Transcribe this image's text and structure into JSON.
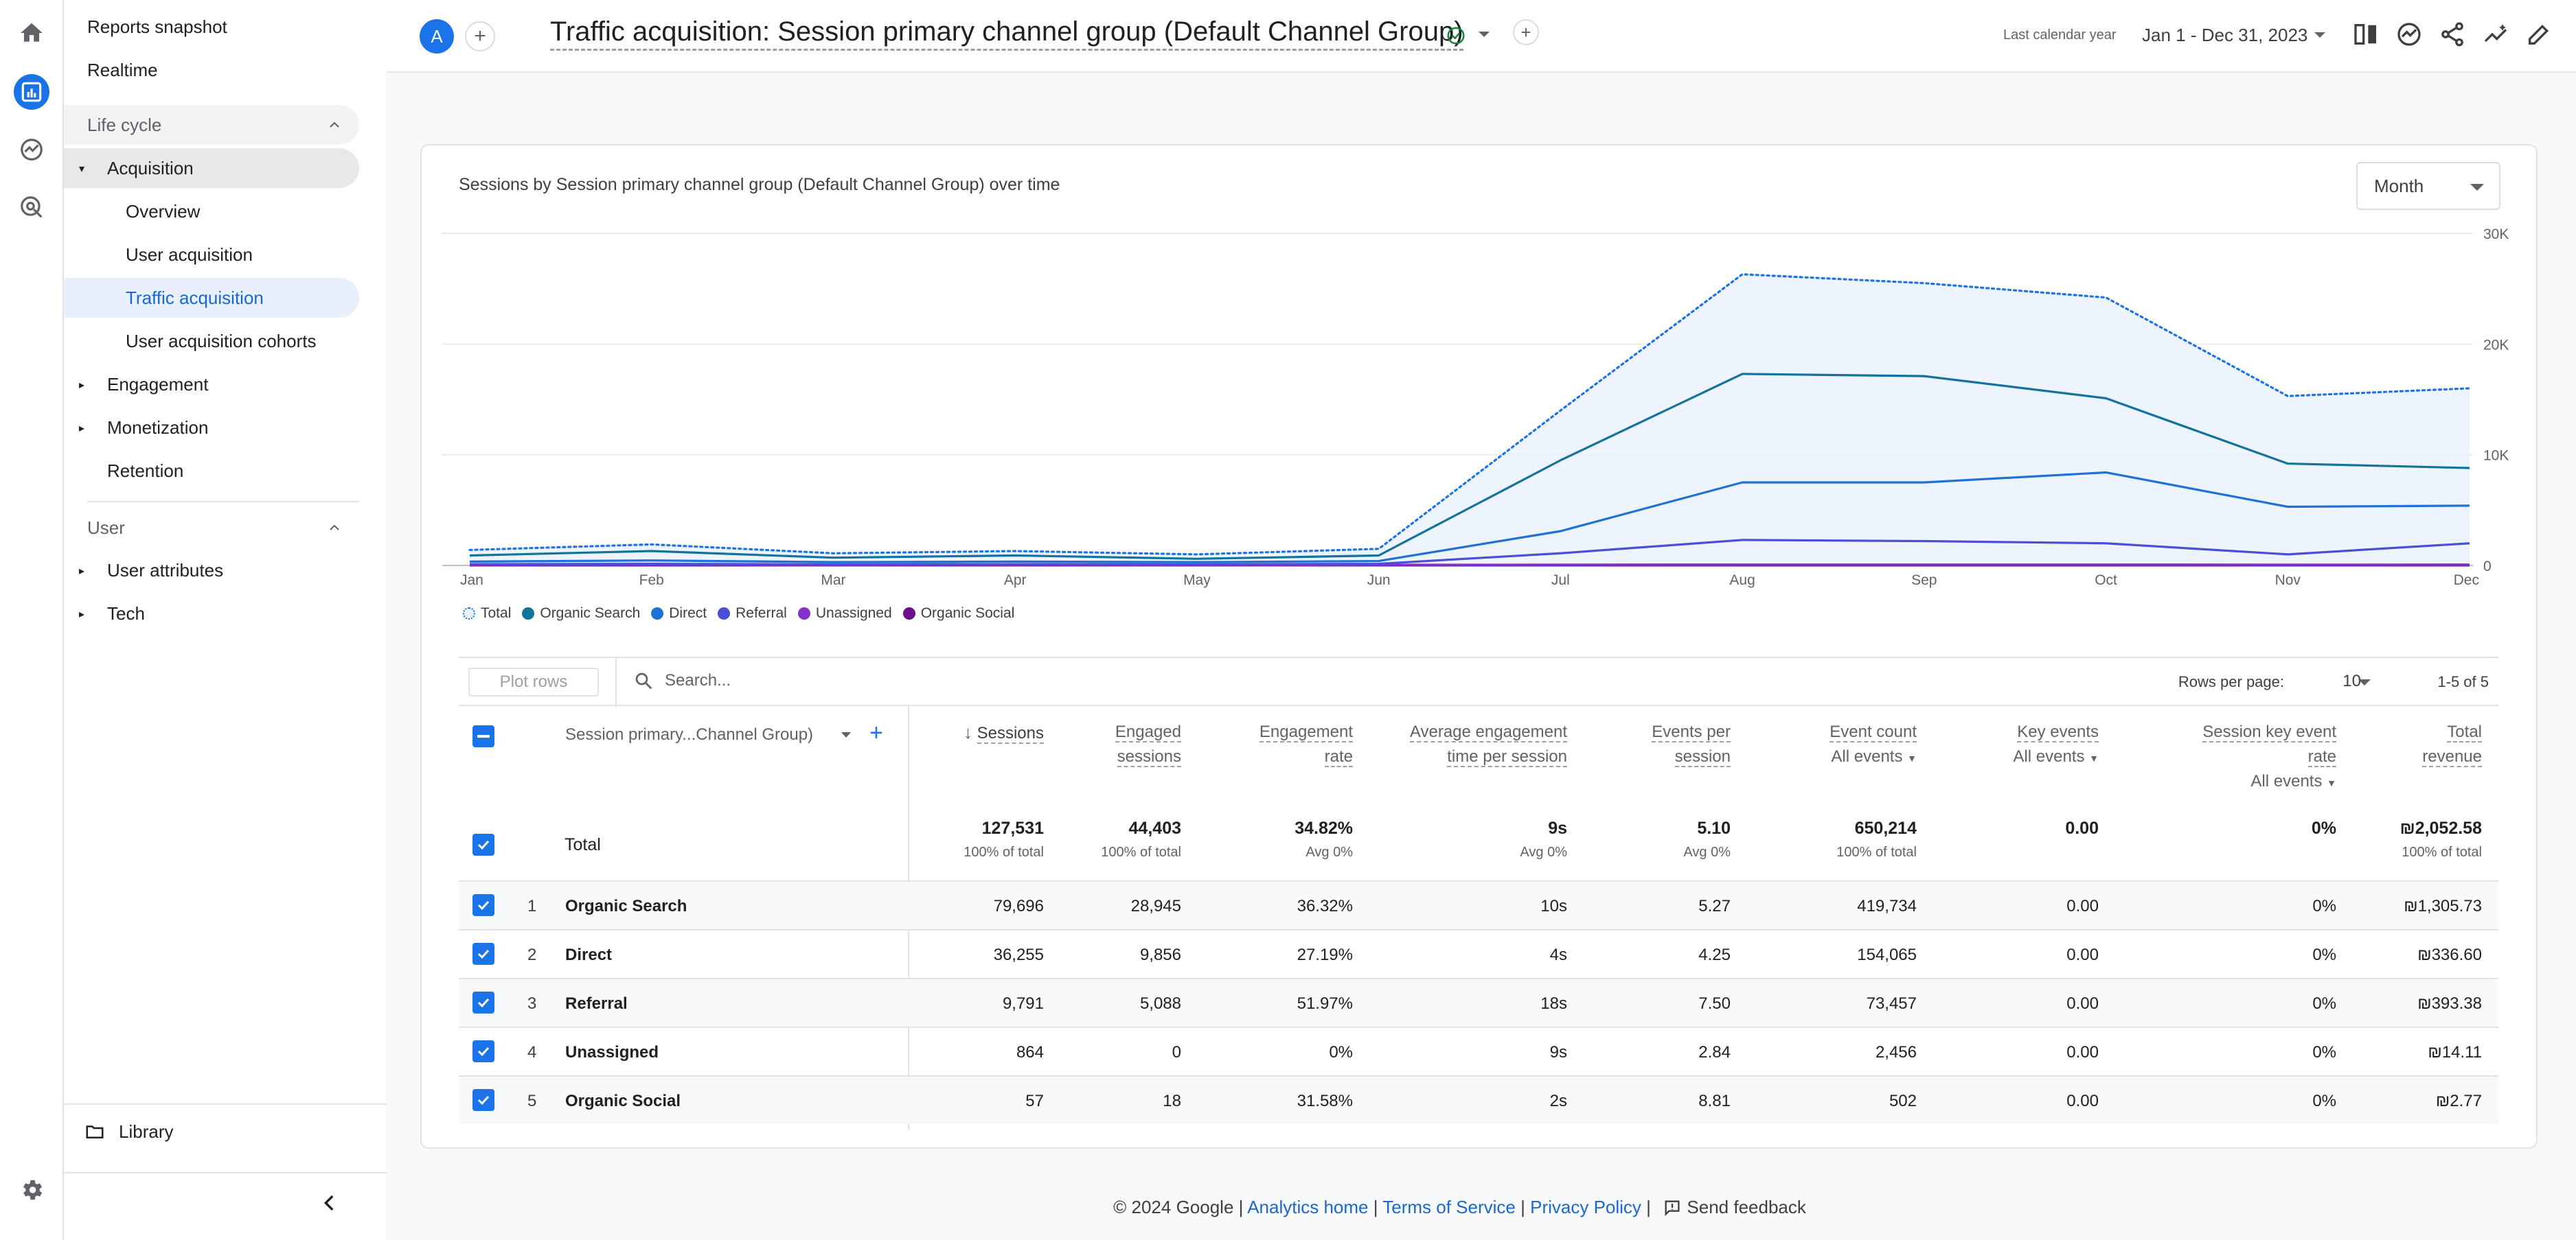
{
  "sidebar": {
    "reports_snapshot": "Reports snapshot",
    "realtime": "Realtime",
    "lifecycle_label": "Life cycle",
    "acquisition": "Acquisition",
    "overview": "Overview",
    "user_acquisition": "User acquisition",
    "traffic_acquisition": "Traffic acquisition",
    "user_acquisition_cohorts": "User acquisition cohorts",
    "engagement": "Engagement",
    "monetization": "Monetization",
    "retention": "Retention",
    "user_label": "User",
    "user_attributes": "User attributes",
    "tech": "Tech",
    "library": "Library"
  },
  "header": {
    "avatar_letter": "A",
    "title": "Traffic acquisition: Session primary channel group (Default Channel Group)",
    "date_label": "Last calendar year",
    "date_range": "Jan 1 - Dec 31, 2023"
  },
  "chart": {
    "title": "Sessions by Session primary channel group (Default Channel Group) over time",
    "granularity": "Month"
  },
  "chart_data": {
    "type": "line",
    "categories": [
      "Jan",
      "Feb",
      "Mar",
      "Apr",
      "May",
      "Jun",
      "Jul",
      "Aug",
      "Sep",
      "Oct",
      "Nov",
      "Dec"
    ],
    "y_ticks": [
      "30K",
      "20K",
      "10K",
      "0"
    ],
    "ylim": [
      0,
      30000
    ],
    "series": [
      {
        "name": "Total",
        "color": "#1a73e8",
        "style": "dotted",
        "values": [
          1400,
          1900,
          1100,
          1300,
          1000,
          1500,
          14000,
          26300,
          25500,
          24200,
          15300,
          16000
        ]
      },
      {
        "name": "Organic Search",
        "color": "#12739c",
        "values": [
          900,
          1300,
          700,
          900,
          600,
          900,
          9500,
          17300,
          17100,
          15100,
          9200,
          8800
        ]
      },
      {
        "name": "Direct",
        "color": "#1e72d6",
        "values": [
          350,
          450,
          300,
          350,
          300,
          400,
          3100,
          7500,
          7500,
          8400,
          5300,
          5400
        ]
      },
      {
        "name": "Referral",
        "color": "#4a4fd8",
        "values": [
          120,
          150,
          100,
          120,
          100,
          150,
          1100,
          2300,
          2200,
          2000,
          1000,
          2000
        ]
      },
      {
        "name": "Unassigned",
        "color": "#8430ce",
        "values": [
          60,
          70,
          50,
          60,
          50,
          60,
          70,
          80,
          80,
          80,
          70,
          80
        ]
      },
      {
        "name": "Organic Social",
        "color": "#6a0f8e",
        "values": [
          5,
          5,
          5,
          5,
          5,
          5,
          5,
          10,
          5,
          5,
          5,
          5
        ]
      }
    ]
  },
  "table": {
    "plot_rows": "Plot rows",
    "search_placeholder": "Search...",
    "rows_per_page_label": "Rows per page:",
    "rows_per_page": "10",
    "pager": "1-5 of 5",
    "dimension_header": "Session primary...Channel Group)",
    "headers": {
      "sessions": "Sessions",
      "engaged_1": "Engaged",
      "engaged_2": "sessions",
      "eng_rate_1": "Engagement",
      "eng_rate_2": "rate",
      "avg_time_1": "Average engagement",
      "avg_time_2": "time per session",
      "events_per_1": "Events per",
      "events_per_2": "session",
      "event_count": "Event count",
      "event_count_sub": "All events",
      "key_events": "Key events",
      "key_events_sub": "All events",
      "skr_1": "Session key event",
      "skr_2": "rate",
      "skr_sub": "All events",
      "revenue_1": "Total",
      "revenue_2": "revenue"
    },
    "total": {
      "label": "Total",
      "sessions": "127,531",
      "sessions_sub": "100% of total",
      "engaged": "44,403",
      "engaged_sub": "100% of total",
      "eng_rate": "34.82%",
      "eng_rate_sub": "Avg 0%",
      "avg_time": "9s",
      "avg_time_sub": "Avg 0%",
      "events_per": "5.10",
      "events_per_sub": "Avg 0%",
      "event_count": "650,214",
      "event_count_sub": "100% of total",
      "key_events": "0.00",
      "skr": "0%",
      "revenue": "₪2,052.58",
      "revenue_sub": "100% of total"
    },
    "rows": [
      {
        "idx": "1",
        "name": "Organic Search",
        "sessions": "79,696",
        "engaged": "28,945",
        "eng_rate": "36.32%",
        "avg_time": "10s",
        "events_per": "5.27",
        "event_count": "419,734",
        "key_events": "0.00",
        "skr": "0%",
        "revenue": "₪1,305.73"
      },
      {
        "idx": "2",
        "name": "Direct",
        "sessions": "36,255",
        "engaged": "9,856",
        "eng_rate": "27.19%",
        "avg_time": "4s",
        "events_per": "4.25",
        "event_count": "154,065",
        "key_events": "0.00",
        "skr": "0%",
        "revenue": "₪336.60"
      },
      {
        "idx": "3",
        "name": "Referral",
        "sessions": "9,791",
        "engaged": "5,088",
        "eng_rate": "51.97%",
        "avg_time": "18s",
        "events_per": "7.50",
        "event_count": "73,457",
        "key_events": "0.00",
        "skr": "0%",
        "revenue": "₪393.38"
      },
      {
        "idx": "4",
        "name": "Unassigned",
        "sessions": "864",
        "engaged": "0",
        "eng_rate": "0%",
        "avg_time": "9s",
        "events_per": "2.84",
        "event_count": "2,456",
        "key_events": "0.00",
        "skr": "0%",
        "revenue": "₪14.11"
      },
      {
        "idx": "5",
        "name": "Organic Social",
        "sessions": "57",
        "engaged": "18",
        "eng_rate": "31.58%",
        "avg_time": "2s",
        "events_per": "8.81",
        "event_count": "502",
        "key_events": "0.00",
        "skr": "0%",
        "revenue": "₪2.77"
      }
    ]
  },
  "footer": {
    "copyright": "© 2024 Google |",
    "analytics_home": "Analytics home",
    "sep1": "|",
    "terms": "Terms of Service",
    "sep2": "|",
    "privacy": "Privacy Policy",
    "sep3": "|",
    "feedback": "Send feedback"
  }
}
